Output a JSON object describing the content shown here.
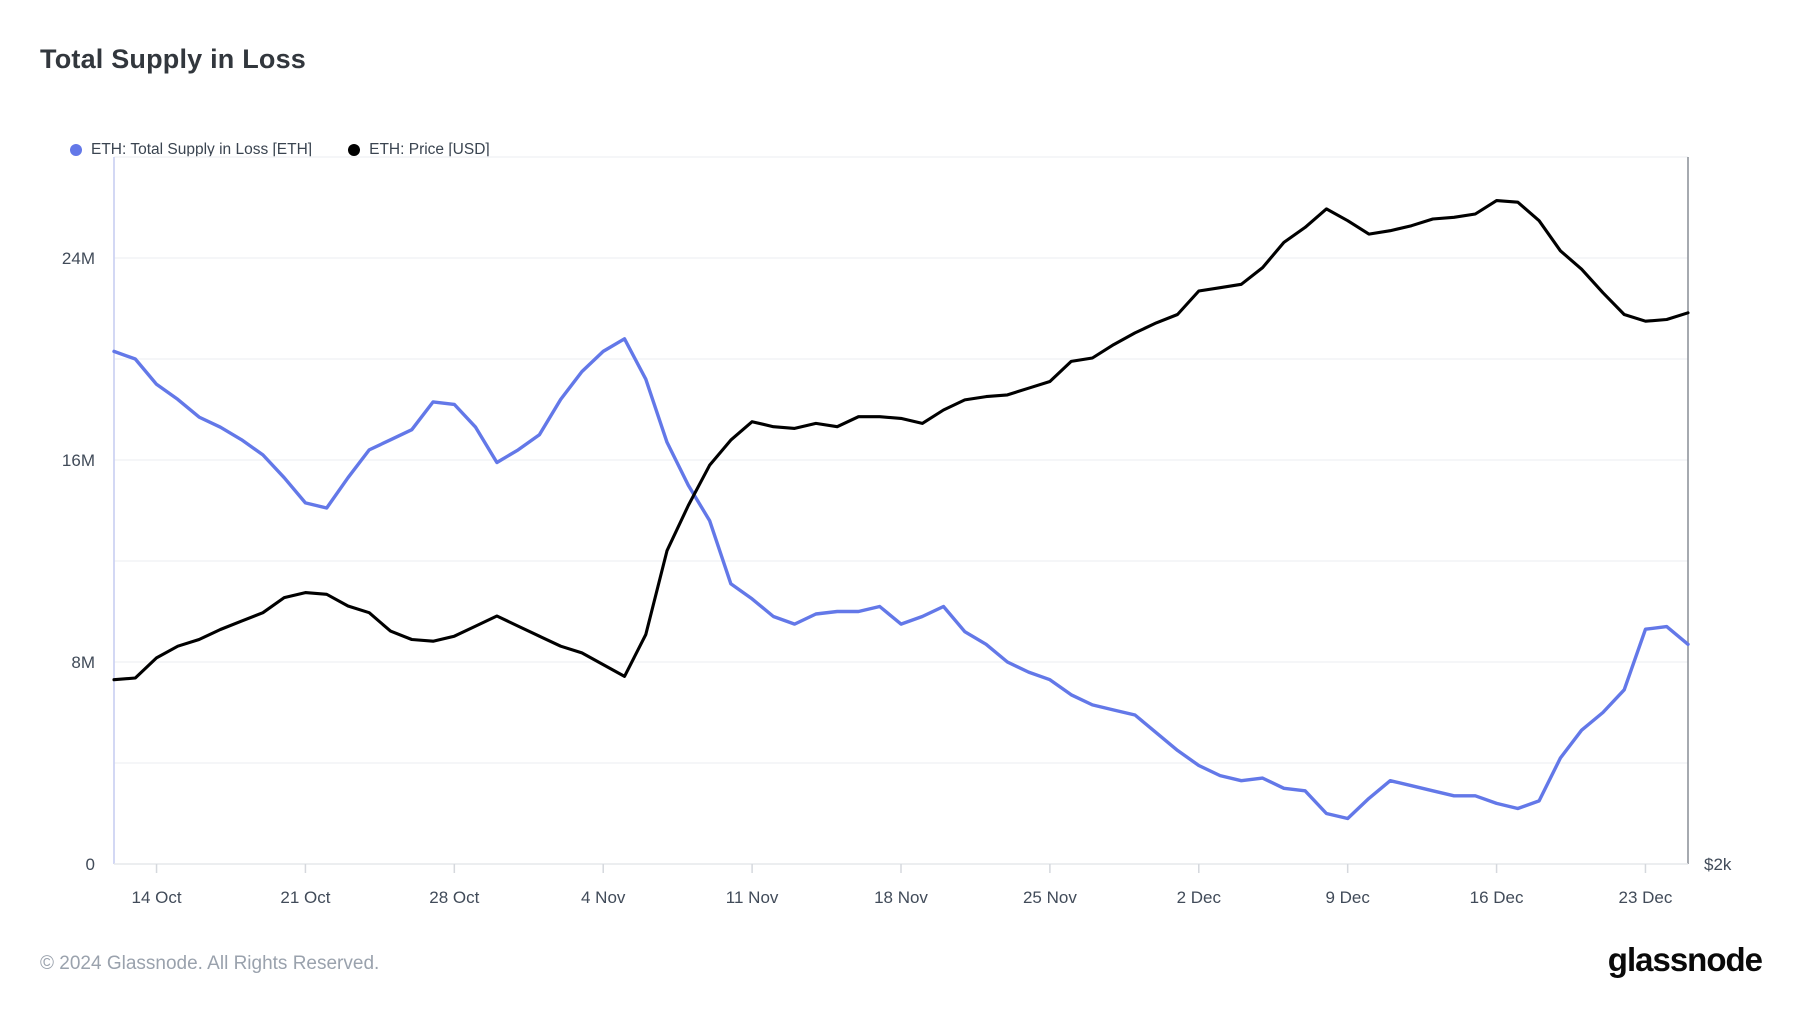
{
  "header": {
    "title": "Total Supply in Loss"
  },
  "legend": {
    "items": [
      {
        "label": "ETH: Total Supply in Loss [ETH]",
        "color": "#6378e8"
      },
      {
        "label": "ETH: Price [USD]",
        "color": "#000000"
      }
    ]
  },
  "footer": {
    "copyright": "© 2024 Glassnode. All Rights Reserved.",
    "brand": "glassnode"
  },
  "colors": {
    "supply_line": "#6378e8",
    "price_line": "#000000",
    "gridline": "#f2f3f6",
    "axis_bottom": "#e6e8eb",
    "axis_left": "#c8cff2",
    "axis_right": "#8f959c",
    "tick_mark": "#d5d8dd",
    "axis_text": "#414b59"
  },
  "chart_data": {
    "type": "line",
    "title": "Total Supply in Loss",
    "grid": "horizontal",
    "legend_position": "top-left",
    "x": [
      "12 Oct",
      "13 Oct",
      "14 Oct",
      "15 Oct",
      "16 Oct",
      "17 Oct",
      "18 Oct",
      "19 Oct",
      "20 Oct",
      "21 Oct",
      "22 Oct",
      "23 Oct",
      "24 Oct",
      "25 Oct",
      "26 Oct",
      "27 Oct",
      "28 Oct",
      "29 Oct",
      "30 Oct",
      "31 Oct",
      "1 Nov",
      "2 Nov",
      "3 Nov",
      "4 Nov",
      "5 Nov",
      "6 Nov",
      "7 Nov",
      "8 Nov",
      "9 Nov",
      "10 Nov",
      "11 Nov",
      "12 Nov",
      "13 Nov",
      "14 Nov",
      "15 Nov",
      "16 Nov",
      "17 Nov",
      "18 Nov",
      "19 Nov",
      "20 Nov",
      "21 Nov",
      "22 Nov",
      "23 Nov",
      "24 Nov",
      "25 Nov",
      "26 Nov",
      "27 Nov",
      "28 Nov",
      "29 Nov",
      "30 Nov",
      "1 Dec",
      "2 Dec",
      "3 Dec",
      "4 Dec",
      "5 Dec",
      "6 Dec",
      "7 Dec",
      "8 Dec",
      "9 Dec",
      "10 Dec",
      "11 Dec",
      "12 Dec",
      "13 Dec",
      "14 Dec",
      "15 Dec",
      "16 Dec",
      "17 Dec",
      "18 Dec",
      "19 Dec",
      "20 Dec",
      "21 Dec",
      "22 Dec",
      "23 Dec",
      "24 Dec",
      "25 Dec"
    ],
    "x_ticks": [
      "14 Oct",
      "21 Oct",
      "28 Oct",
      "4 Nov",
      "11 Nov",
      "18 Nov",
      "25 Nov",
      "2 Dec",
      "9 Dec",
      "16 Dec",
      "23 Dec"
    ],
    "series": [
      {
        "name": "ETH: Total Supply in Loss [ETH]",
        "axis": "left",
        "unit": "million ETH",
        "color": "#6378e8",
        "values": [
          20.3,
          20.0,
          19.0,
          18.4,
          17.7,
          17.3,
          16.8,
          16.2,
          15.3,
          14.3,
          14.1,
          15.3,
          16.4,
          16.8,
          17.2,
          18.3,
          18.2,
          17.3,
          15.9,
          16.4,
          17.0,
          18.4,
          19.5,
          20.3,
          20.8,
          19.2,
          16.7,
          15.0,
          13.6,
          11.1,
          10.5,
          9.8,
          9.5,
          9.9,
          10.0,
          10.0,
          10.2,
          9.5,
          9.8,
          10.2,
          9.2,
          8.7,
          8.0,
          7.6,
          7.3,
          6.7,
          6.3,
          6.1,
          5.9,
          5.2,
          4.5,
          3.9,
          3.5,
          3.3,
          3.4,
          3.0,
          2.9,
          2.0,
          1.8,
          2.6,
          3.3,
          3.1,
          2.9,
          2.7,
          2.7,
          2.4,
          2.2,
          2.5,
          4.2,
          5.3,
          6.0,
          6.9,
          9.3,
          9.4,
          8.7
        ]
      },
      {
        "name": "ETH: Price [USD]",
        "axis": "right",
        "unit": "USD",
        "color": "#000000",
        "values": [
          2550,
          2555,
          2615,
          2650,
          2670,
          2700,
          2725,
          2750,
          2795,
          2810,
          2805,
          2770,
          2750,
          2695,
          2670,
          2665,
          2680,
          2710,
          2740,
          2710,
          2680,
          2650,
          2630,
          2595,
          2560,
          2685,
          2935,
          3070,
          3190,
          3265,
          3320,
          3305,
          3300,
          3315,
          3305,
          3335,
          3335,
          3330,
          3315,
          3355,
          3385,
          3395,
          3400,
          3420,
          3440,
          3500,
          3510,
          3550,
          3585,
          3615,
          3640,
          3710,
          3720,
          3730,
          3780,
          3855,
          3900,
          3955,
          3920,
          3880,
          3890,
          3905,
          3925,
          3930,
          3940,
          3980,
          3975,
          3920,
          3830,
          3775,
          3705,
          3640,
          3620,
          3625,
          3645
        ]
      }
    ],
    "left_axis": {
      "unit": "ETH",
      "range": [
        0,
        28
      ],
      "gridline_step_m": 4,
      "ticks": [
        {
          "value": 0,
          "label": "0"
        },
        {
          "value": 8,
          "label": "8M"
        },
        {
          "value": 16,
          "label": "16M"
        },
        {
          "value": 24,
          "label": "24M"
        }
      ]
    },
    "right_axis": {
      "unit": "USD",
      "range": [
        2000,
        4110
      ],
      "visible_label": "$2k",
      "visible_label_value": 2000
    }
  }
}
